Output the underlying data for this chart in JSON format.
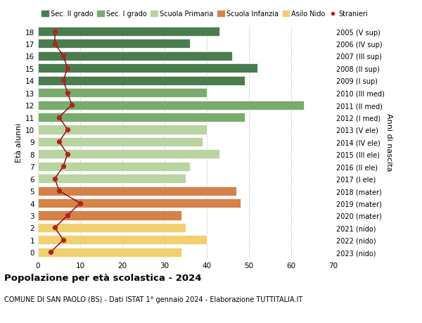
{
  "ages": [
    18,
    17,
    16,
    15,
    14,
    13,
    12,
    11,
    10,
    9,
    8,
    7,
    6,
    5,
    4,
    3,
    2,
    1,
    0
  ],
  "bar_values": [
    43,
    36,
    46,
    52,
    49,
    40,
    63,
    49,
    40,
    39,
    43,
    36,
    35,
    47,
    48,
    34,
    35,
    40,
    34
  ],
  "stranieri_values": [
    4,
    4,
    6,
    7,
    6,
    7,
    8,
    5,
    7,
    5,
    7,
    6,
    4,
    5,
    10,
    7,
    4,
    6,
    3
  ],
  "right_labels": [
    "2005 (V sup)",
    "2006 (IV sup)",
    "2007 (III sup)",
    "2008 (II sup)",
    "2009 (I sup)",
    "2010 (III med)",
    "2011 (II med)",
    "2012 (I med)",
    "2013 (V ele)",
    "2014 (IV ele)",
    "2015 (III ele)",
    "2016 (II ele)",
    "2017 (I ele)",
    "2018 (mater)",
    "2019 (mater)",
    "2020 (mater)",
    "2021 (nido)",
    "2022 (nido)",
    "2023 (nido)"
  ],
  "bar_colors": [
    "#4a7c4e",
    "#4a7c4e",
    "#4a7c4e",
    "#4a7c4e",
    "#4a7c4e",
    "#7aab6e",
    "#7aab6e",
    "#7aab6e",
    "#b8d4a0",
    "#b8d4a0",
    "#b8d4a0",
    "#b8d4a0",
    "#b8d4a0",
    "#d4824a",
    "#d4824a",
    "#d4824a",
    "#f0d070",
    "#f0d070",
    "#f0d070"
  ],
  "legend_labels": [
    "Sec. II grado",
    "Sec. I grado",
    "Scuola Primaria",
    "Scuola Infanzia",
    "Asilo Nido",
    "Stranieri"
  ],
  "legend_colors": [
    "#4a7c4e",
    "#7aab6e",
    "#b8d4a0",
    "#d4824a",
    "#f0d070",
    "#b22222"
  ],
  "title": "Popolazione per età scolastica - 2024",
  "subtitle": "COMUNE DI SAN PAOLO (BS) - Dati ISTAT 1° gennaio 2024 - Elaborazione TUTTITALIA.IT",
  "ylabel_left": "Età alunni",
  "ylabel_right": "Anni di nascita",
  "xlim": [
    0,
    70
  ],
  "xticks": [
    0,
    10,
    20,
    30,
    40,
    50,
    60,
    70
  ],
  "stranieri_color": "#b22222",
  "stranieri_line_color": "#8b0000",
  "background_color": "#ffffff",
  "grid_color": "#cccccc"
}
